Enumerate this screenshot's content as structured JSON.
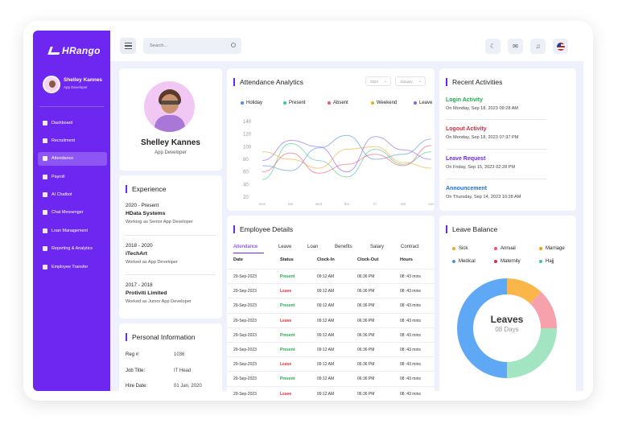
{
  "brand": {
    "name": "HRango"
  },
  "user": {
    "name": "Shelley Kannes",
    "role": "App Developer"
  },
  "nav": [
    {
      "label": "Dashboard",
      "icon": "grid-icon"
    },
    {
      "label": "Recruitment",
      "icon": "users-icon"
    },
    {
      "label": "Attendance",
      "icon": "calendar-icon",
      "active": true
    },
    {
      "label": "Payroll",
      "icon": "card-icon"
    },
    {
      "label": "AI Chatbot",
      "icon": "bot-icon"
    },
    {
      "label": "Chat Messenger",
      "icon": "chat-icon"
    },
    {
      "label": "Loan Management",
      "icon": "loan-icon"
    },
    {
      "label": "Reporting & Analytics",
      "icon": "chart-icon"
    },
    {
      "label": "Employee Transfer",
      "icon": "transfer-icon"
    }
  ],
  "search": {
    "placeholder": "Search..."
  },
  "profile": {
    "name": "Shelley Kannes",
    "role": "App Developer"
  },
  "experience": {
    "title": "Experience",
    "items": [
      {
        "dates": "2020 - Present",
        "company": "HData Systems",
        "role": "Working as Senior App Developer"
      },
      {
        "dates": "2018 - 2020",
        "company": "iTechArt",
        "role": "Worked as App Developer"
      },
      {
        "dates": "2017 - 2018",
        "company": "Protiviti Limited",
        "role": "Worked as Junior App Developer"
      }
    ]
  },
  "personal": {
    "title": "Personal Information",
    "rows": [
      {
        "k": "Reg #:",
        "v": "1036"
      },
      {
        "k": "Job Title:",
        "v": "IT Head"
      },
      {
        "k": "Hire Date:",
        "v": "01 Jan, 2020"
      }
    ]
  },
  "analytics": {
    "title": "Attendance Analytics",
    "year": "2023",
    "month": "January",
    "legend": [
      {
        "label": "Holiday",
        "color": "#4a90e2"
      },
      {
        "label": "Present",
        "color": "#3cc98a"
      },
      {
        "label": "Absent",
        "color": "#f0566a"
      },
      {
        "label": "Weekend",
        "color": "#f5a623"
      },
      {
        "label": "Leave",
        "color": "#8b5cf6"
      }
    ]
  },
  "chart_data": {
    "type": "line",
    "x": [
      "mon",
      "tue",
      "wed",
      "thu",
      "fri",
      "sat",
      "sun"
    ],
    "ylim": [
      20,
      140
    ],
    "yticks": [
      20,
      40,
      60,
      80,
      100,
      120,
      140
    ],
    "series": [
      {
        "name": "Holiday",
        "color": "#4a90e2",
        "values": [
          70,
          62,
          98,
          118,
          80,
          88,
          112
        ]
      },
      {
        "name": "Present",
        "color": "#3cc98a",
        "values": [
          48,
          105,
          78,
          52,
          96,
          72,
          92
        ]
      },
      {
        "name": "Absent",
        "color": "#f0566a",
        "values": [
          60,
          90,
          58,
          72,
          88,
          70,
          102
        ]
      },
      {
        "name": "Weekend",
        "color": "#f5a623",
        "values": [
          92,
          80,
          66,
          96,
          100,
          75,
          66
        ]
      },
      {
        "name": "Leave",
        "color": "#8b5cf6",
        "values": [
          78,
          110,
          100,
          60,
          116,
          95,
          80
        ]
      }
    ]
  },
  "employee": {
    "title": "Employee Details",
    "tabs": [
      "Attendance",
      "Leave",
      "Loan",
      "Benefits",
      "Salary",
      "Contract"
    ],
    "columns": [
      "Date",
      "Status",
      "Clock-In",
      "Clock-Out",
      "Hours"
    ],
    "rows": [
      {
        "date": "29-Sep-2023",
        "status": "Present",
        "in": "09:12 AM",
        "out": "06:36 PM",
        "hours": "08 :43 mins"
      },
      {
        "date": "29-Sep-2023",
        "status": "Leave",
        "in": "09:12 AM",
        "out": "06:36 PM",
        "hours": "08 :43 mins"
      },
      {
        "date": "29-Sep-2023",
        "status": "Present",
        "in": "09:12 AM",
        "out": "06:36 PM",
        "hours": "08 :43 mins"
      },
      {
        "date": "29-Sep-2023",
        "status": "Leave",
        "in": "09:12 AM",
        "out": "06:36 PM",
        "hours": "08 :43 mins"
      },
      {
        "date": "29-Sep-2023",
        "status": "Present",
        "in": "09:12 AM",
        "out": "06:36 PM",
        "hours": "08 :43 mins"
      },
      {
        "date": "29-Sep-2023",
        "status": "Present",
        "in": "09:12 AM",
        "out": "06:36 PM",
        "hours": "08 :43 mins"
      },
      {
        "date": "29-Sep-2023",
        "status": "Leave",
        "in": "09:12 AM",
        "out": "06:36 PM",
        "hours": "08 :43 mins"
      },
      {
        "date": "29-Sep-2023",
        "status": "Present",
        "in": "09:12 AM",
        "out": "06:36 PM",
        "hours": "08 :43 mins"
      },
      {
        "date": "29-Sep-2023",
        "status": "Leave",
        "in": "09:12 AM",
        "out": "06:36 PM",
        "hours": "08 :43 mins"
      }
    ]
  },
  "activities": {
    "title": "Recent Activities",
    "items": [
      {
        "title": "Login Activity",
        "date": "On Monday, Sep 18, 2023  09:28 AM",
        "color": "#21a84a"
      },
      {
        "title": "Logout Activity",
        "date": "On Monday, Sep 18, 2023  07:37 PM",
        "color": "#e02d3d"
      },
      {
        "title": "Leave Request",
        "date": "On Friday, Sep 15, 2023  02:28 PM",
        "color": "#6e27f0"
      },
      {
        "title": "Announcement",
        "date": "On Thursday, Sep 14, 2023  10:28 AM",
        "color": "#1f6fe0"
      }
    ]
  },
  "leave": {
    "title": "Leave Balance",
    "legend": [
      {
        "label": "Sick",
        "color": "#f5a623"
      },
      {
        "label": "Annual",
        "color": "#f0566a"
      },
      {
        "label": "Marriage",
        "color": "#f59e0b"
      },
      {
        "label": "Medical",
        "color": "#4a90e2"
      },
      {
        "label": "Maternity",
        "color": "#e02d3d"
      },
      {
        "label": "Hajj",
        "color": "#3cc98a"
      }
    ],
    "center_title": "Leaves",
    "center_sub": "08 Days",
    "slices": [
      {
        "name": "Sick",
        "value": 12,
        "color": "#fbb64a"
      },
      {
        "name": "Annual",
        "value": 13,
        "color": "#f7a1ad"
      },
      {
        "name": "Hajj",
        "value": 25,
        "color": "#a3e4c3"
      },
      {
        "name": "Medical",
        "value": 50,
        "color": "#5fa8f5"
      }
    ]
  }
}
